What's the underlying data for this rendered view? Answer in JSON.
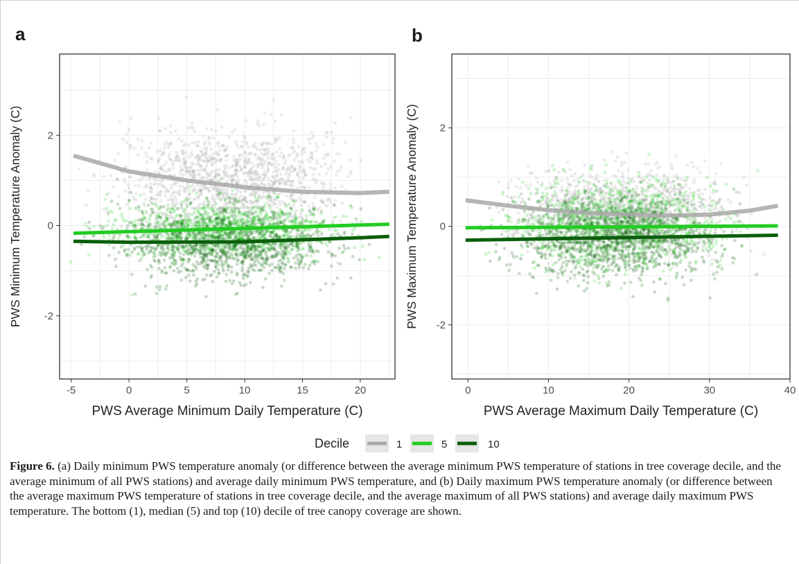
{
  "panels": [
    {
      "letter": "a"
    },
    {
      "letter": "b"
    }
  ],
  "legend": {
    "title": "Decile",
    "items": [
      {
        "label": "1",
        "color": "#a8a8a8"
      },
      {
        "label": "5",
        "color": "#22cc22"
      },
      {
        "label": "10",
        "color": "#0b5e0b"
      }
    ]
  },
  "caption": {
    "label": "Figure 6.",
    "text": "(a) Daily minimum PWS temperature anomaly (or difference between the average minimum PWS temperature of stations in tree coverage decile, and the average minimum of all PWS stations) and average daily minimum PWS temperature, and (b) Daily maximum PWS temperature anomaly (or difference between the average maximum PWS temperature of stations in tree coverage decile, and the average maximum of all PWS stations) and average daily maximum PWS temperature. The bottom (1), median (5) and top (10) decile of tree canopy coverage are shown."
  },
  "chart_data": [
    {
      "type": "scatter",
      "panel": "a",
      "xlabel": "PWS Average Minimum Daily Temperature (C)",
      "ylabel": "PWS Minimum Temperature Anomaly (C)",
      "xlim": [
        -6,
        23
      ],
      "ylim": [
        -3.4,
        3.8
      ],
      "xticks": [
        -5,
        0,
        5,
        10,
        15,
        20
      ],
      "yticks": [
        -2,
        0,
        2
      ],
      "grid": true,
      "series": [
        {
          "name": "1",
          "color": "#a8a8a8",
          "cloud": {
            "x_range": [
              -5,
              22
            ],
            "center": 1.0,
            "spread": 0.55
          },
          "trend": {
            "x": [
              -4.8,
              0,
              5,
              10,
              15,
              20,
              22.5
            ],
            "y": [
              1.55,
              1.2,
              1.0,
              0.85,
              0.75,
              0.72,
              0.75
            ]
          }
        },
        {
          "name": "5",
          "color": "#22cc22",
          "cloud": {
            "x_range": [
              -5,
              22
            ],
            "center": -0.1,
            "spread": 0.3
          },
          "trend": {
            "x": [
              -4.8,
              22.5
            ],
            "y": [
              -0.17,
              0.03
            ]
          }
        },
        {
          "name": "10",
          "color": "#0b5e0b",
          "cloud": {
            "x_range": [
              -5,
              22
            ],
            "center": -0.4,
            "spread": 0.4
          },
          "trend": {
            "x": [
              -4.8,
              0,
              10,
              20,
              22.5
            ],
            "y": [
              -0.35,
              -0.37,
              -0.36,
              -0.27,
              -0.24
            ]
          }
        }
      ]
    },
    {
      "type": "scatter",
      "panel": "b",
      "xlabel": "PWS Average Maximum Daily Temperature (C)",
      "ylabel": "PWS Maximum Temperature Anomaly (C)",
      "xlim": [
        -2,
        40
      ],
      "ylim": [
        -3.1,
        3.5
      ],
      "xticks": [
        0,
        10,
        20,
        30,
        40
      ],
      "yticks": [
        -2,
        0,
        2
      ],
      "grid": true,
      "series": [
        {
          "name": "1",
          "color": "#a8a8a8",
          "cloud": {
            "x_range": [
              0,
              38
            ],
            "center": 0.3,
            "spread": 0.4
          },
          "trend": {
            "x": [
              -0.3,
              5,
              10,
              15,
              20,
              25,
              30,
              35,
              38.5
            ],
            "y": [
              0.53,
              0.42,
              0.33,
              0.27,
              0.24,
              0.22,
              0.24,
              0.32,
              0.42
            ]
          }
        },
        {
          "name": "5",
          "color": "#22cc22",
          "cloud": {
            "x_range": [
              0,
              38
            ],
            "center": 0.05,
            "spread": 0.45
          },
          "trend": {
            "x": [
              -0.3,
              38.5
            ],
            "y": [
              -0.03,
              0.01
            ]
          }
        },
        {
          "name": "10",
          "color": "#0b5e0b",
          "cloud": {
            "x_range": [
              0,
              38
            ],
            "center": -0.25,
            "spread": 0.4
          },
          "trend": {
            "x": [
              -0.3,
              38.5
            ],
            "y": [
              -0.28,
              -0.18
            ]
          }
        }
      ]
    }
  ]
}
